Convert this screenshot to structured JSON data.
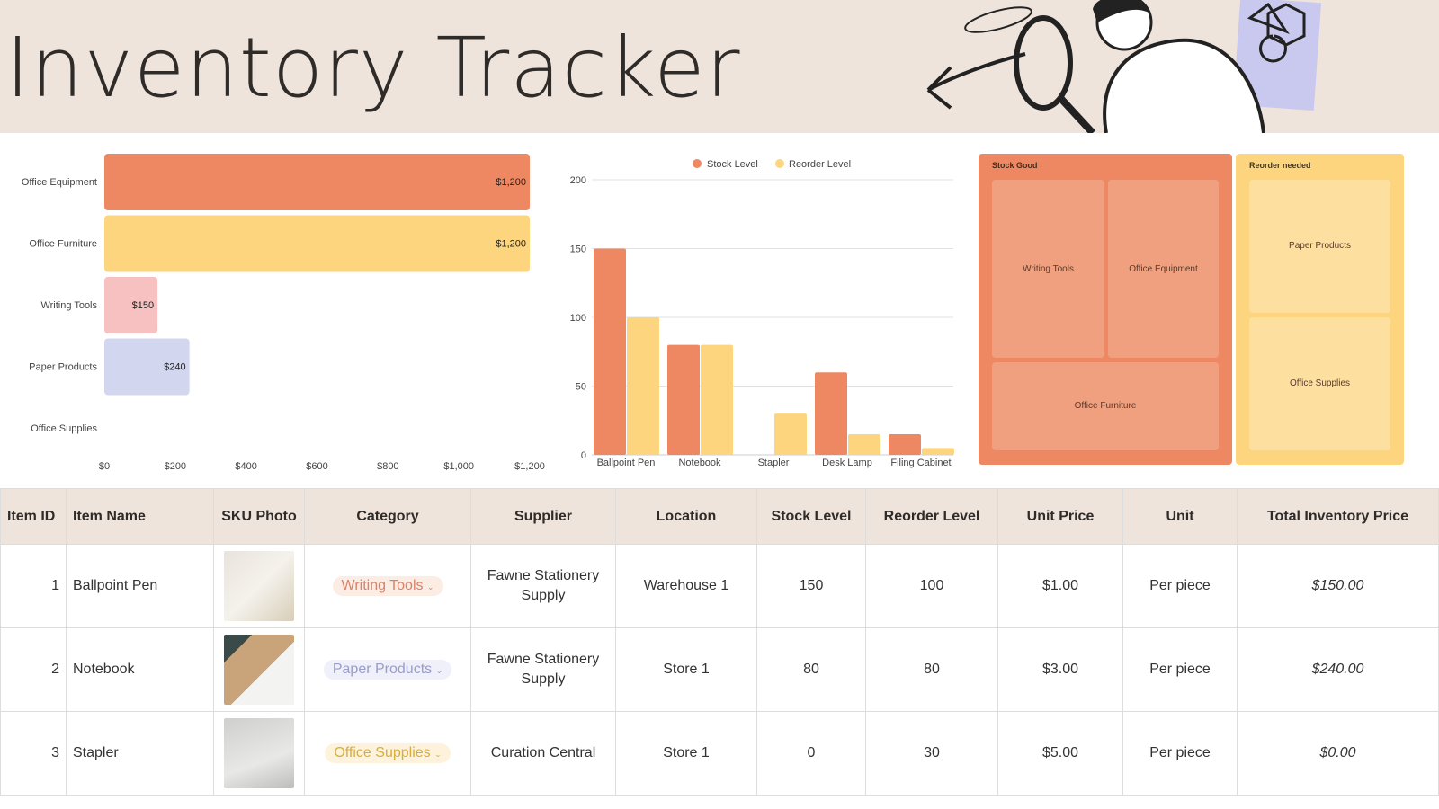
{
  "title": "Inventory Tracker",
  "colors": {
    "header_bg": "#efe4dc",
    "orange": "#ee8862",
    "yellow": "#fdd57e",
    "pink": "#f6c1c0",
    "lavender": "#d3d6ef"
  },
  "chart_data": [
    {
      "type": "bar",
      "orientation": "horizontal",
      "categories": [
        "Office Equipment",
        "Office Furniture",
        "Writing Tools",
        "Paper Products",
        "Office Supplies"
      ],
      "values": [
        1200,
        1200,
        150,
        240,
        0
      ],
      "data_labels": [
        "$1,200",
        "$1,200",
        "$150",
        "$240",
        ""
      ],
      "bar_colors": [
        "#ee8862",
        "#fdd57e",
        "#f6c1c0",
        "#d3d6ef",
        "#cccccc"
      ],
      "xlim": [
        0,
        1200
      ],
      "x_ticks": [
        "$0",
        "$200",
        "$400",
        "$600",
        "$800",
        "$1,000",
        "$1,200"
      ],
      "grid": false
    },
    {
      "type": "bar",
      "categories": [
        "Ballpoint Pen",
        "Notebook",
        "Stapler",
        "Desk Lamp",
        "Filing Cabinet"
      ],
      "series": [
        {
          "name": "Stock Level",
          "values": [
            150,
            80,
            0,
            60,
            15
          ],
          "color": "#ee8862"
        },
        {
          "name": "Reorder Level",
          "values": [
            100,
            80,
            30,
            15,
            5
          ],
          "color": "#fdd57e"
        }
      ],
      "ylim": [
        0,
        200
      ],
      "y_ticks": [
        "0",
        "50",
        "100",
        "150",
        "200"
      ],
      "grid": true,
      "legend": "top"
    },
    {
      "type": "treemap",
      "groups": [
        {
          "name": "Stock Good",
          "items": [
            "Writing Tools",
            "Office Equipment",
            "Office Furniture"
          ]
        },
        {
          "name": "Reorder needed",
          "items": [
            "Paper Products",
            "Office Supplies"
          ]
        }
      ]
    }
  ],
  "table": {
    "headers": [
      "Item ID",
      "Item Name",
      "SKU Photo",
      "Category",
      "Supplier",
      "Location",
      "Stock Level",
      "Reorder Level",
      "Unit Price",
      "Unit",
      "Total Inventory Price"
    ],
    "rows": [
      {
        "id": "1",
        "name": "Ballpoint Pen",
        "category": "Writing Tools",
        "supplier": "Fawne Stationery Supply",
        "location": "Warehouse 1",
        "stock": "150",
        "reorder": "100",
        "price": "$1.00",
        "unit": "Per piece",
        "total": "$150.00"
      },
      {
        "id": "2",
        "name": "Notebook",
        "category": "Paper Products",
        "supplier": "Fawne Stationery Supply",
        "location": "Store 1",
        "stock": "80",
        "reorder": "80",
        "price": "$3.00",
        "unit": "Per piece",
        "total": "$240.00"
      },
      {
        "id": "3",
        "name": "Stapler",
        "category": "Office Supplies",
        "supplier": "Curation Central",
        "location": "Store 1",
        "stock": "0",
        "reorder": "30",
        "price": "$5.00",
        "unit": "Per piece",
        "total": "$0.00"
      }
    ]
  }
}
